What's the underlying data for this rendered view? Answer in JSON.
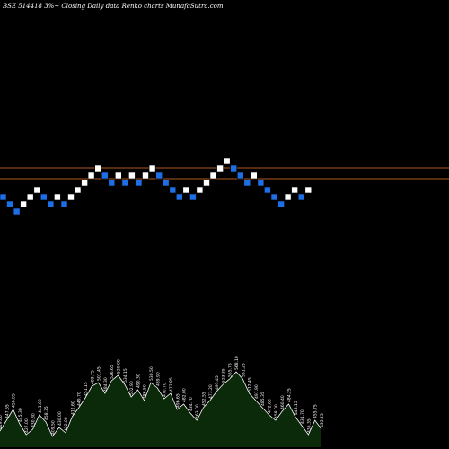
{
  "header": {
    "title": "BSE 514418  3%~   Closing Daily data  Renko  charts MunafaSutra.com"
  },
  "colors": {
    "background": "#000000",
    "up_brick": "#ffffff",
    "down_brick": "#1e6fe6",
    "reference_line": "#b05a1e",
    "volume_fill": "#0a2a0a",
    "volume_stroke": "#ffffff"
  },
  "chart_data": {
    "type": "renko",
    "brick_size_pct": 3,
    "reference_levels": [
      1,
      0
    ],
    "bricks": [
      {
        "level": -2,
        "dir": "down"
      },
      {
        "level": -3,
        "dir": "down"
      },
      {
        "level": -4,
        "dir": "down"
      },
      {
        "level": -3,
        "dir": "up"
      },
      {
        "level": -2,
        "dir": "up"
      },
      {
        "level": -1,
        "dir": "up"
      },
      {
        "level": -2,
        "dir": "down"
      },
      {
        "level": -3,
        "dir": "down"
      },
      {
        "level": -2,
        "dir": "up"
      },
      {
        "level": -3,
        "dir": "down"
      },
      {
        "level": -2,
        "dir": "up"
      },
      {
        "level": -1,
        "dir": "up"
      },
      {
        "level": 0,
        "dir": "up"
      },
      {
        "level": 1,
        "dir": "up"
      },
      {
        "level": 2,
        "dir": "up"
      },
      {
        "level": 1,
        "dir": "down"
      },
      {
        "level": 0,
        "dir": "down"
      },
      {
        "level": 1,
        "dir": "up"
      },
      {
        "level": 0,
        "dir": "down"
      },
      {
        "level": 1,
        "dir": "up"
      },
      {
        "level": 0,
        "dir": "down"
      },
      {
        "level": 1,
        "dir": "up"
      },
      {
        "level": 2,
        "dir": "up"
      },
      {
        "level": 1,
        "dir": "down"
      },
      {
        "level": 0,
        "dir": "down"
      },
      {
        "level": -1,
        "dir": "down"
      },
      {
        "level": -2,
        "dir": "down"
      },
      {
        "level": -1,
        "dir": "up"
      },
      {
        "level": -2,
        "dir": "down"
      },
      {
        "level": -1,
        "dir": "up"
      },
      {
        "level": 0,
        "dir": "up"
      },
      {
        "level": 1,
        "dir": "up"
      },
      {
        "level": 2,
        "dir": "up"
      },
      {
        "level": 3,
        "dir": "up"
      },
      {
        "level": 2,
        "dir": "down"
      },
      {
        "level": 1,
        "dir": "down"
      },
      {
        "level": 0,
        "dir": "down"
      },
      {
        "level": 1,
        "dir": "up"
      },
      {
        "level": 0,
        "dir": "down"
      },
      {
        "level": -1,
        "dir": "down"
      },
      {
        "level": -2,
        "dir": "down"
      },
      {
        "level": -3,
        "dir": "down"
      },
      {
        "level": -2,
        "dir": "up"
      },
      {
        "level": -1,
        "dir": "up"
      },
      {
        "level": -2,
        "dir": "down"
      },
      {
        "level": -1,
        "dir": "up"
      }
    ],
    "volume": [
      {
        "value": 18,
        "label": "449.00"
      },
      {
        "value": 30,
        "label": "447.65"
      },
      {
        "value": 42,
        "label": "456.05"
      },
      {
        "value": 26,
        "label": "445.30"
      },
      {
        "value": 14,
        "label": "427.00"
      },
      {
        "value": 20,
        "label": "430.80"
      },
      {
        "value": 36,
        "label": "441.00"
      },
      {
        "value": 28,
        "label": "458.35"
      },
      {
        "value": 12,
        "label": "409.50"
      },
      {
        "value": 22,
        "label": "430.00"
      },
      {
        "value": 16,
        "label": "422.00"
      },
      {
        "value": 34,
        "label": "412.60"
      },
      {
        "value": 44,
        "label": "449.70"
      },
      {
        "value": 55,
        "label": "451.15"
      },
      {
        "value": 68,
        "label": "489.75"
      },
      {
        "value": 72,
        "label": "501.45"
      },
      {
        "value": 60,
        "label": "484.30"
      },
      {
        "value": 74,
        "label": "526.65"
      },
      {
        "value": 80,
        "label": "520.00"
      },
      {
        "value": 70,
        "label": "534.15"
      },
      {
        "value": 56,
        "label": "502.90"
      },
      {
        "value": 64,
        "label": "490.30"
      },
      {
        "value": 52,
        "label": "486.50"
      },
      {
        "value": 72,
        "label": "530.50"
      },
      {
        "value": 66,
        "label": "489.90"
      },
      {
        "value": 54,
        "label": "470.70"
      },
      {
        "value": 60,
        "label": "472.85"
      },
      {
        "value": 42,
        "label": "496.65"
      },
      {
        "value": 48,
        "label": "482.00"
      },
      {
        "value": 38,
        "label": "434.70"
      },
      {
        "value": 30,
        "label": "463.00"
      },
      {
        "value": 44,
        "label": "452.55"
      },
      {
        "value": 52,
        "label": "473.20"
      },
      {
        "value": 62,
        "label": "495.45"
      },
      {
        "value": 70,
        "label": "523.35"
      },
      {
        "value": 76,
        "label": "555.75"
      },
      {
        "value": 84,
        "label": "568.10"
      },
      {
        "value": 76,
        "label": "551.25"
      },
      {
        "value": 60,
        "label": "512.45"
      },
      {
        "value": 52,
        "label": "497.90"
      },
      {
        "value": 44,
        "label": "485.35"
      },
      {
        "value": 36,
        "label": "472.60"
      },
      {
        "value": 30,
        "label": "458.00"
      },
      {
        "value": 40,
        "label": "460.40"
      },
      {
        "value": 48,
        "label": "484.25"
      },
      {
        "value": 34,
        "label": "448.15"
      },
      {
        "value": 24,
        "label": "431.70"
      },
      {
        "value": 14,
        "label": "435.35"
      },
      {
        "value": 30,
        "label": "455.75"
      },
      {
        "value": 20,
        "label": "435.25"
      }
    ]
  }
}
